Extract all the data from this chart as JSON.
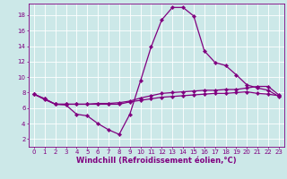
{
  "xlabel": "Windchill (Refroidissement éolien,°C)",
  "bg_color": "#cce8e8",
  "line_color": "#800080",
  "grid_color": "#ffffff",
  "xlim": [
    -0.5,
    23.5
  ],
  "ylim": [
    1.0,
    19.5
  ],
  "xticks": [
    0,
    1,
    2,
    3,
    4,
    5,
    6,
    7,
    8,
    9,
    10,
    11,
    12,
    13,
    14,
    15,
    16,
    17,
    18,
    19,
    20,
    21,
    22,
    23
  ],
  "yticks": [
    2,
    4,
    6,
    8,
    10,
    12,
    14,
    16,
    18
  ],
  "line1_x": [
    0,
    1,
    2,
    3,
    4,
    5,
    6,
    7,
    8,
    9,
    10,
    11,
    12,
    13,
    14,
    15,
    16,
    17,
    18,
    19,
    20,
    21,
    22,
    23
  ],
  "line1_y": [
    7.8,
    7.1,
    6.5,
    6.4,
    5.2,
    5.0,
    4.0,
    3.2,
    2.6,
    5.2,
    9.5,
    13.9,
    17.4,
    19.0,
    19.0,
    17.9,
    13.4,
    11.9,
    11.5,
    10.3,
    9.0,
    8.6,
    8.3,
    7.5
  ],
  "line2_x": [
    0,
    1,
    2,
    3,
    4,
    5,
    6,
    7,
    8,
    9,
    10,
    11,
    12,
    13,
    14,
    15,
    16,
    17,
    18,
    19,
    20,
    21,
    22,
    23
  ],
  "line2_y": [
    7.8,
    7.2,
    6.5,
    6.5,
    6.5,
    6.5,
    6.6,
    6.6,
    6.7,
    6.9,
    7.3,
    7.6,
    7.9,
    8.0,
    8.1,
    8.2,
    8.3,
    8.3,
    8.4,
    8.4,
    8.6,
    8.8,
    8.8,
    7.7
  ],
  "line3_x": [
    0,
    1,
    2,
    3,
    4,
    5,
    6,
    7,
    8,
    9,
    10,
    11,
    12,
    13,
    14,
    15,
    16,
    17,
    18,
    19,
    20,
    21,
    22,
    23
  ],
  "line3_y": [
    7.8,
    7.2,
    6.5,
    6.5,
    6.5,
    6.5,
    6.5,
    6.5,
    6.5,
    6.8,
    7.0,
    7.2,
    7.4,
    7.5,
    7.6,
    7.7,
    7.8,
    7.9,
    7.9,
    8.0,
    8.1,
    7.9,
    7.8,
    7.6
  ],
  "marker": "D",
  "markersize": 2.2,
  "linewidth": 0.9,
  "tick_label_fontsize": 5.0,
  "xlabel_fontsize": 6.0
}
